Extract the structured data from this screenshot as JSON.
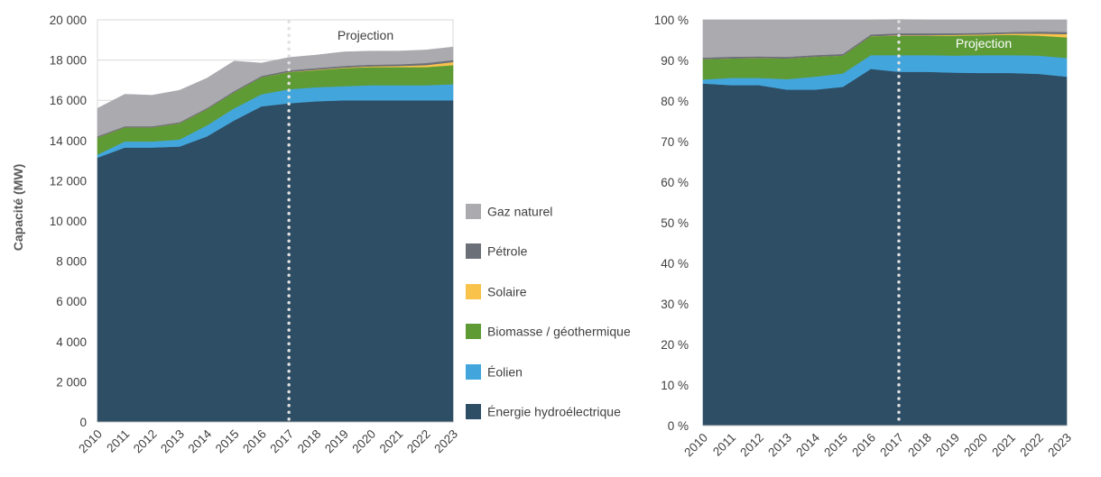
{
  "chart_data": [
    {
      "type": "area",
      "stacked": true,
      "title": "",
      "xlabel": "",
      "ylabel": "Capacité (MW)",
      "ylim": [
        0,
        20000
      ],
      "yticks": [
        0,
        2000,
        4000,
        6000,
        8000,
        10000,
        12000,
        14000,
        16000,
        18000,
        20000
      ],
      "ytick_labels": [
        "0",
        "2 000",
        "4 000",
        "6 000",
        "8 000",
        "10 000",
        "12 000",
        "14 000",
        "16 000",
        "18 000",
        "20 000"
      ],
      "x": [
        "2010",
        "2011",
        "2012",
        "2013",
        "2014",
        "2015",
        "2016",
        "2017",
        "2018",
        "2019",
        "2020",
        "2021",
        "2022",
        "2023"
      ],
      "projection_start": "2017",
      "annotation": "Projection",
      "series": [
        {
          "name": "Énergie hydroélectrique",
          "color": "#2e4e66",
          "values": [
            13150,
            13650,
            13650,
            13700,
            14200,
            15000,
            15700,
            15850,
            15950,
            16000,
            16000,
            16000,
            16000,
            16000
          ]
        },
        {
          "name": "Éolien",
          "color": "#42a6dd",
          "values": [
            150,
            300,
            300,
            350,
            550,
            600,
            600,
            700,
            700,
            700,
            750,
            750,
            750,
            800
          ]
        },
        {
          "name": "Biomasse / géothermique",
          "color": "#5e9b35",
          "values": [
            850,
            700,
            700,
            800,
            800,
            800,
            850,
            850,
            850,
            900,
            900,
            900,
            900,
            950
          ]
        },
        {
          "name": "Solaire",
          "color": "#f8c24b",
          "values": [
            0,
            0,
            0,
            0,
            0,
            0,
            0,
            10,
            20,
            30,
            40,
            60,
            100,
            150
          ]
        },
        {
          "name": "Pétrole",
          "color": "#6b6f78",
          "values": [
            60,
            60,
            60,
            60,
            60,
            60,
            60,
            80,
            80,
            80,
            80,
            80,
            100,
            100
          ]
        },
        {
          "name": "Gaz naturel",
          "color": "#aaaaaf",
          "values": [
            1390,
            1590,
            1540,
            1590,
            1490,
            1490,
            640,
            640,
            650,
            700,
            680,
            660,
            650,
            650
          ]
        }
      ]
    },
    {
      "type": "area",
      "stacked": true,
      "title": "",
      "xlabel": "",
      "ylabel": "",
      "ylim": [
        0,
        100
      ],
      "yticks": [
        0,
        10,
        20,
        30,
        40,
        50,
        60,
        70,
        80,
        90,
        100
      ],
      "ytick_labels": [
        "0 %",
        "10 %",
        "20 %",
        "30 %",
        "40 %",
        "50 %",
        "60 %",
        "70 %",
        "80 %",
        "90 %",
        "100 %"
      ],
      "x": [
        "2010",
        "2011",
        "2012",
        "2013",
        "2014",
        "2015",
        "2016",
        "2017",
        "2018",
        "2019",
        "2020",
        "2021",
        "2022",
        "2023"
      ],
      "projection_start": "2017",
      "annotation": "Projection",
      "series": [
        {
          "name": "Énergie hydroélectrique",
          "color": "#2e4e66",
          "values": [
            84.3,
            83.9,
            83.9,
            82.8,
            82.8,
            83.5,
            87.9,
            87.2,
            87.2,
            87.0,
            86.9,
            86.9,
            86.7,
            86.0
          ]
        },
        {
          "name": "Éolien",
          "color": "#42a6dd",
          "values": [
            1.0,
            1.8,
            1.8,
            2.6,
            3.2,
            3.3,
            3.4,
            4.1,
            4.1,
            4.2,
            4.4,
            4.4,
            4.5,
            4.6
          ]
        },
        {
          "name": "Biomasse / géothermique",
          "color": "#5e9b35",
          "values": [
            5.0,
            4.8,
            4.9,
            5.1,
            4.9,
            4.4,
            4.7,
            4.8,
            4.8,
            4.9,
            4.9,
            5.0,
            4.9,
            5.1
          ]
        },
        {
          "name": "Solaire",
          "color": "#f8c24b",
          "values": [
            0,
            0,
            0,
            0,
            0,
            0,
            0,
            0.1,
            0.1,
            0.2,
            0.2,
            0.3,
            0.5,
            0.8
          ]
        },
        {
          "name": "Pétrole",
          "color": "#6b6f78",
          "values": [
            0.4,
            0.4,
            0.4,
            0.4,
            0.4,
            0.4,
            0.4,
            0.5,
            0.5,
            0.4,
            0.4,
            0.4,
            0.5,
            0.5
          ]
        },
        {
          "name": "Gaz naturel",
          "color": "#aaaaaf",
          "values": [
            9.3,
            9.1,
            9.0,
            9.1,
            8.7,
            8.4,
            3.6,
            3.4,
            3.3,
            3.3,
            3.2,
            3.0,
            2.9,
            3.0
          ]
        }
      ]
    }
  ],
  "legend": {
    "position": "center",
    "items": [
      {
        "label": "Gaz naturel",
        "color": "#aaaaaf"
      },
      {
        "label": "Pétrole",
        "color": "#6b6f78"
      },
      {
        "label": "Solaire",
        "color": "#f8c24b"
      },
      {
        "label": "Biomasse / géothermique",
        "color": "#5e9b35"
      },
      {
        "label": "Éolien",
        "color": "#42a6dd"
      },
      {
        "label": "Énergie hydroélectrique",
        "color": "#2e4e66"
      }
    ]
  }
}
